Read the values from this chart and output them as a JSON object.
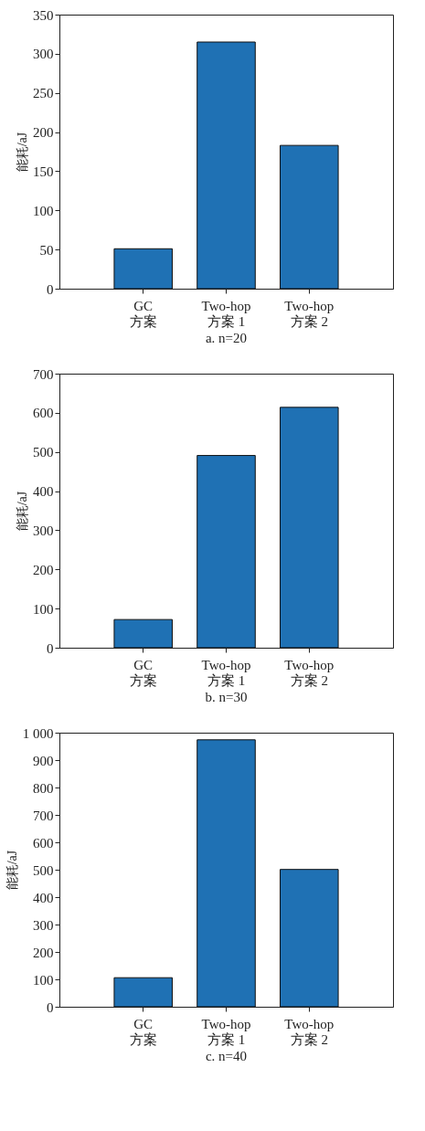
{
  "chart_data": [
    {
      "type": "bar",
      "title": "a. n=20",
      "ylabel": "能耗/aJ",
      "categories": [
        "GC\n方案",
        "Two-hop\n方案 1",
        "Two-hop\n方案 2"
      ],
      "values": [
        51,
        315,
        183
      ],
      "color": "#1f71b4",
      "ylim": [
        0,
        350
      ],
      "yticks": [
        0,
        50,
        100,
        150,
        200,
        250,
        300,
        350
      ]
    },
    {
      "type": "bar",
      "title": "b. n=30",
      "ylabel": "能耗/aJ",
      "categories": [
        "GC\n方案",
        "Two-hop\n方案 1",
        "Two-hop\n方案 2"
      ],
      "values": [
        72,
        491,
        614
      ],
      "color": "#1f71b4",
      "ylim": [
        0,
        700
      ],
      "yticks": [
        0,
        100,
        200,
        300,
        400,
        500,
        600,
        700
      ]
    },
    {
      "type": "bar",
      "title": "c. n=40",
      "ylabel": "能耗/aJ",
      "categories": [
        "GC\n方案",
        "Two-hop\n方案 1",
        "Two-hop\n方案 2"
      ],
      "values": [
        106,
        974,
        501
      ],
      "color": "#1f71b4",
      "ylim": [
        0,
        1000
      ],
      "yticks": [
        0,
        100,
        200,
        300,
        400,
        500,
        600,
        700,
        800,
        900,
        {
          "value": 1000,
          "label": "1 000"
        }
      ]
    }
  ]
}
